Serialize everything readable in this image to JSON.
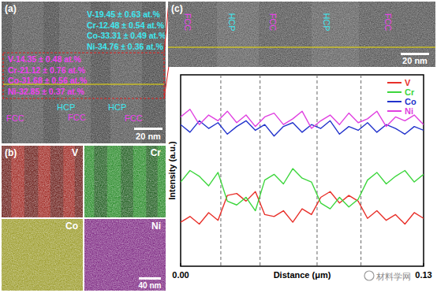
{
  "figure": {
    "panel_a": {
      "label": "(a)",
      "composition_top": [
        "V-19.45 ± 0.63 at.%",
        "Cr-12.48 ± 0.54 at.%",
        "Co-33.31 ± 0.49 at.%",
        "Ni-34.76 ± 0.36 at.%"
      ],
      "composition_region": [
        "V-14.35 ± 0.48 at.%",
        "Cr-21.12 ± 0.76 at.%",
        "Co-31.68 ± 0.56 at.%",
        "Ni-32.85 ± 0.37 at.%"
      ],
      "hcp_labels": [
        "HCP",
        "HCP"
      ],
      "fcc_labels": [
        "FCC",
        "FCC",
        "FCC"
      ],
      "scale_bar": "20 nm"
    },
    "panel_b": {
      "label": "(b)",
      "maps": [
        {
          "element": "V",
          "color": "#e03a30"
        },
        {
          "element": "Cr",
          "color": "#3cc43c"
        },
        {
          "element": "Co",
          "color": "#d8d83a"
        },
        {
          "element": "Ni",
          "color": "#b03ab8"
        }
      ],
      "scale_bar": "40 nm"
    },
    "panel_c": {
      "label": "(c)",
      "phase_labels": [
        "FCC",
        "HCP",
        "FCC",
        "HCP",
        "FCC"
      ],
      "scale_bar": "20 nm"
    },
    "watermark": "材料学网"
  },
  "chart_data": {
    "type": "line",
    "x_label": "Distance (μm)",
    "y_label": "Intensity (a.u.)",
    "x": [
      0,
      0.005,
      0.01,
      0.015,
      0.02,
      0.025,
      0.03,
      0.035,
      0.04,
      0.045,
      0.05,
      0.055,
      0.06,
      0.065,
      0.07,
      0.075,
      0.08,
      0.085,
      0.09,
      0.095,
      0.1,
      0.105,
      0.11,
      0.115,
      0.12,
      0.125,
      0.13
    ],
    "series": [
      {
        "name": "V",
        "color": "#e8302a",
        "values": [
          2.3,
          2.6,
          2.2,
          2.8,
          2.4,
          3.7,
          3.8,
          3.4,
          3.9,
          2.7,
          2.6,
          2.9,
          2.3,
          3.0,
          2.7,
          3.6,
          3.9,
          3.3,
          3.7,
          3.4,
          2.5,
          2.9,
          2.4,
          2.7,
          2.2,
          2.8,
          2.5
        ]
      },
      {
        "name": "Cr",
        "color": "#3dd63d",
        "values": [
          4.4,
          5.0,
          4.7,
          4.2,
          4.9,
          3.4,
          3.2,
          3.6,
          2.9,
          4.5,
          4.8,
          4.3,
          5.1,
          4.6,
          4.4,
          3.3,
          3.0,
          3.6,
          3.1,
          3.5,
          4.5,
          4.9,
          4.3,
          4.7,
          5.0,
          4.4,
          4.8
        ]
      },
      {
        "name": "Co",
        "color": "#2233cc",
        "values": [
          7.4,
          7.0,
          7.6,
          7.2,
          7.5,
          6.9,
          7.3,
          7.6,
          7.1,
          7.4,
          6.8,
          7.3,
          7.5,
          7.0,
          7.4,
          7.2,
          7.6,
          6.9,
          7.3,
          7.1,
          7.5,
          7.0,
          7.4,
          7.2,
          6.9,
          7.3,
          7.1
        ]
      },
      {
        "name": "Ni",
        "color": "#e040e0",
        "values": [
          7.8,
          8.2,
          7.4,
          7.9,
          7.6,
          8.1,
          7.5,
          7.9,
          7.3,
          7.8,
          8.0,
          7.4,
          7.7,
          8.1,
          7.2,
          7.6,
          7.9,
          7.4,
          8.0,
          7.5,
          7.7,
          8.1,
          7.3,
          7.8,
          7.6,
          7.9,
          7.4
        ]
      }
    ],
    "xlim": [
      0,
      0.13
    ],
    "xticks": [
      {
        "value": 0,
        "label": "0.00"
      },
      {
        "value": 0.13,
        "label": "0.13"
      }
    ],
    "ylim": [
      0,
      10
    ],
    "tick_labels": "x",
    "grid": false,
    "legend": "top-right",
    "phase_boundaries": [
      0.0215,
      0.0425,
      0.073,
      0.0965
    ]
  }
}
